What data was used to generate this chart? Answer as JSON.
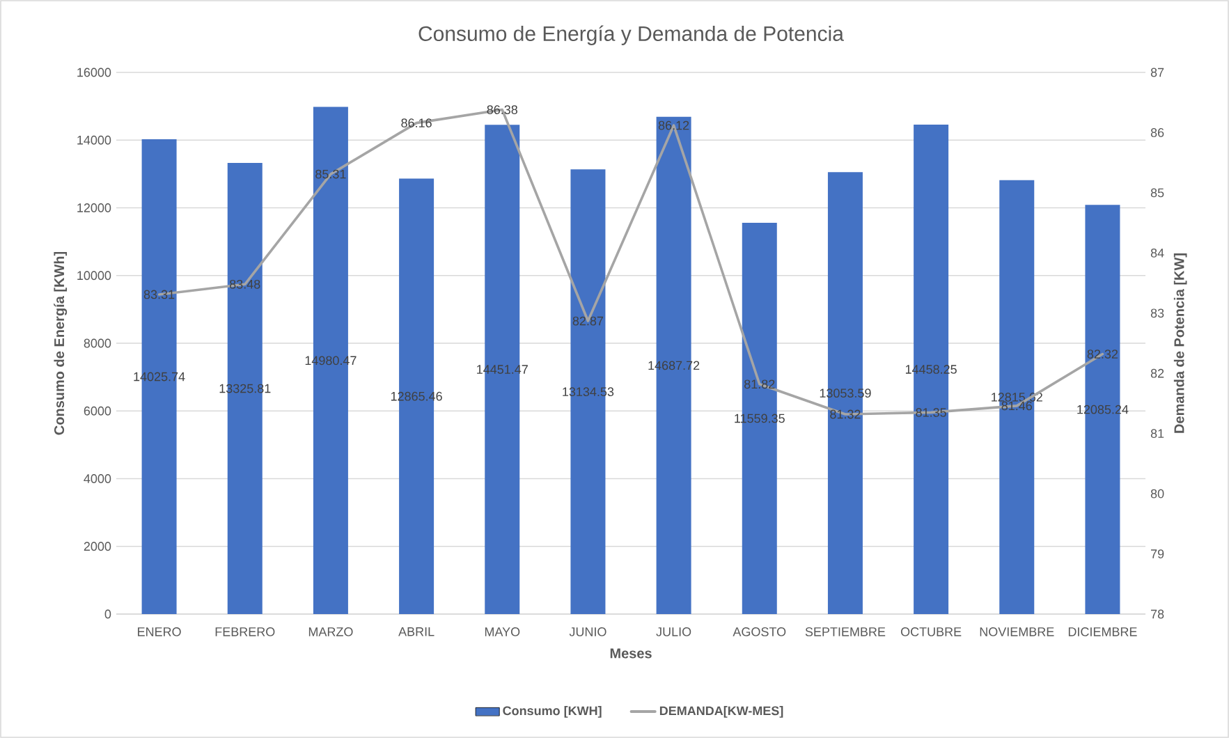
{
  "chart_data": {
    "type": "bar",
    "title": "Consumo de Energía y Demanda de Potencia",
    "xlabel": "Meses",
    "ylabel": "Consumo de Energía [KWh]",
    "y2label": "Demanda de Potencia [KW]",
    "categories": [
      "ENERO",
      "FEBRERO",
      "MARZO",
      "ABRIL",
      "MAYO",
      "JUNIO",
      "JULIO",
      "AGOSTO",
      "SEPTIEMBRE",
      "OCTUBRE",
      "NOVIEMBRE",
      "DICIEMBRE"
    ],
    "series": [
      {
        "type": "bar",
        "name": "Consumo [KWH]",
        "color": "#4472c4",
        "values": [
          14025.74,
          13325.81,
          14980.47,
          12865.46,
          14451.47,
          13134.53,
          14687.72,
          11559.35,
          13053.59,
          14458.25,
          12815.62,
          12085.24
        ]
      },
      {
        "type": "line",
        "axis": "y2",
        "name": "DEMANDA[KW-MES]",
        "color": "#a5a5a5",
        "values": [
          83.31,
          83.48,
          85.31,
          86.16,
          86.38,
          82.87,
          86.12,
          81.82,
          81.32,
          81.35,
          81.46,
          82.32
        ]
      }
    ],
    "ylim": [
      0,
      16000
    ],
    "yticks": [
      0,
      2000,
      4000,
      6000,
      8000,
      10000,
      12000,
      14000,
      16000
    ],
    "y2lim": [
      78,
      87
    ],
    "y2ticks": [
      78,
      79,
      80,
      81,
      82,
      83,
      84,
      85,
      86,
      87
    ],
    "grid": "y",
    "legend": "bottom",
    "data_labels": true,
    "marker": "none",
    "line_style": "solid"
  }
}
